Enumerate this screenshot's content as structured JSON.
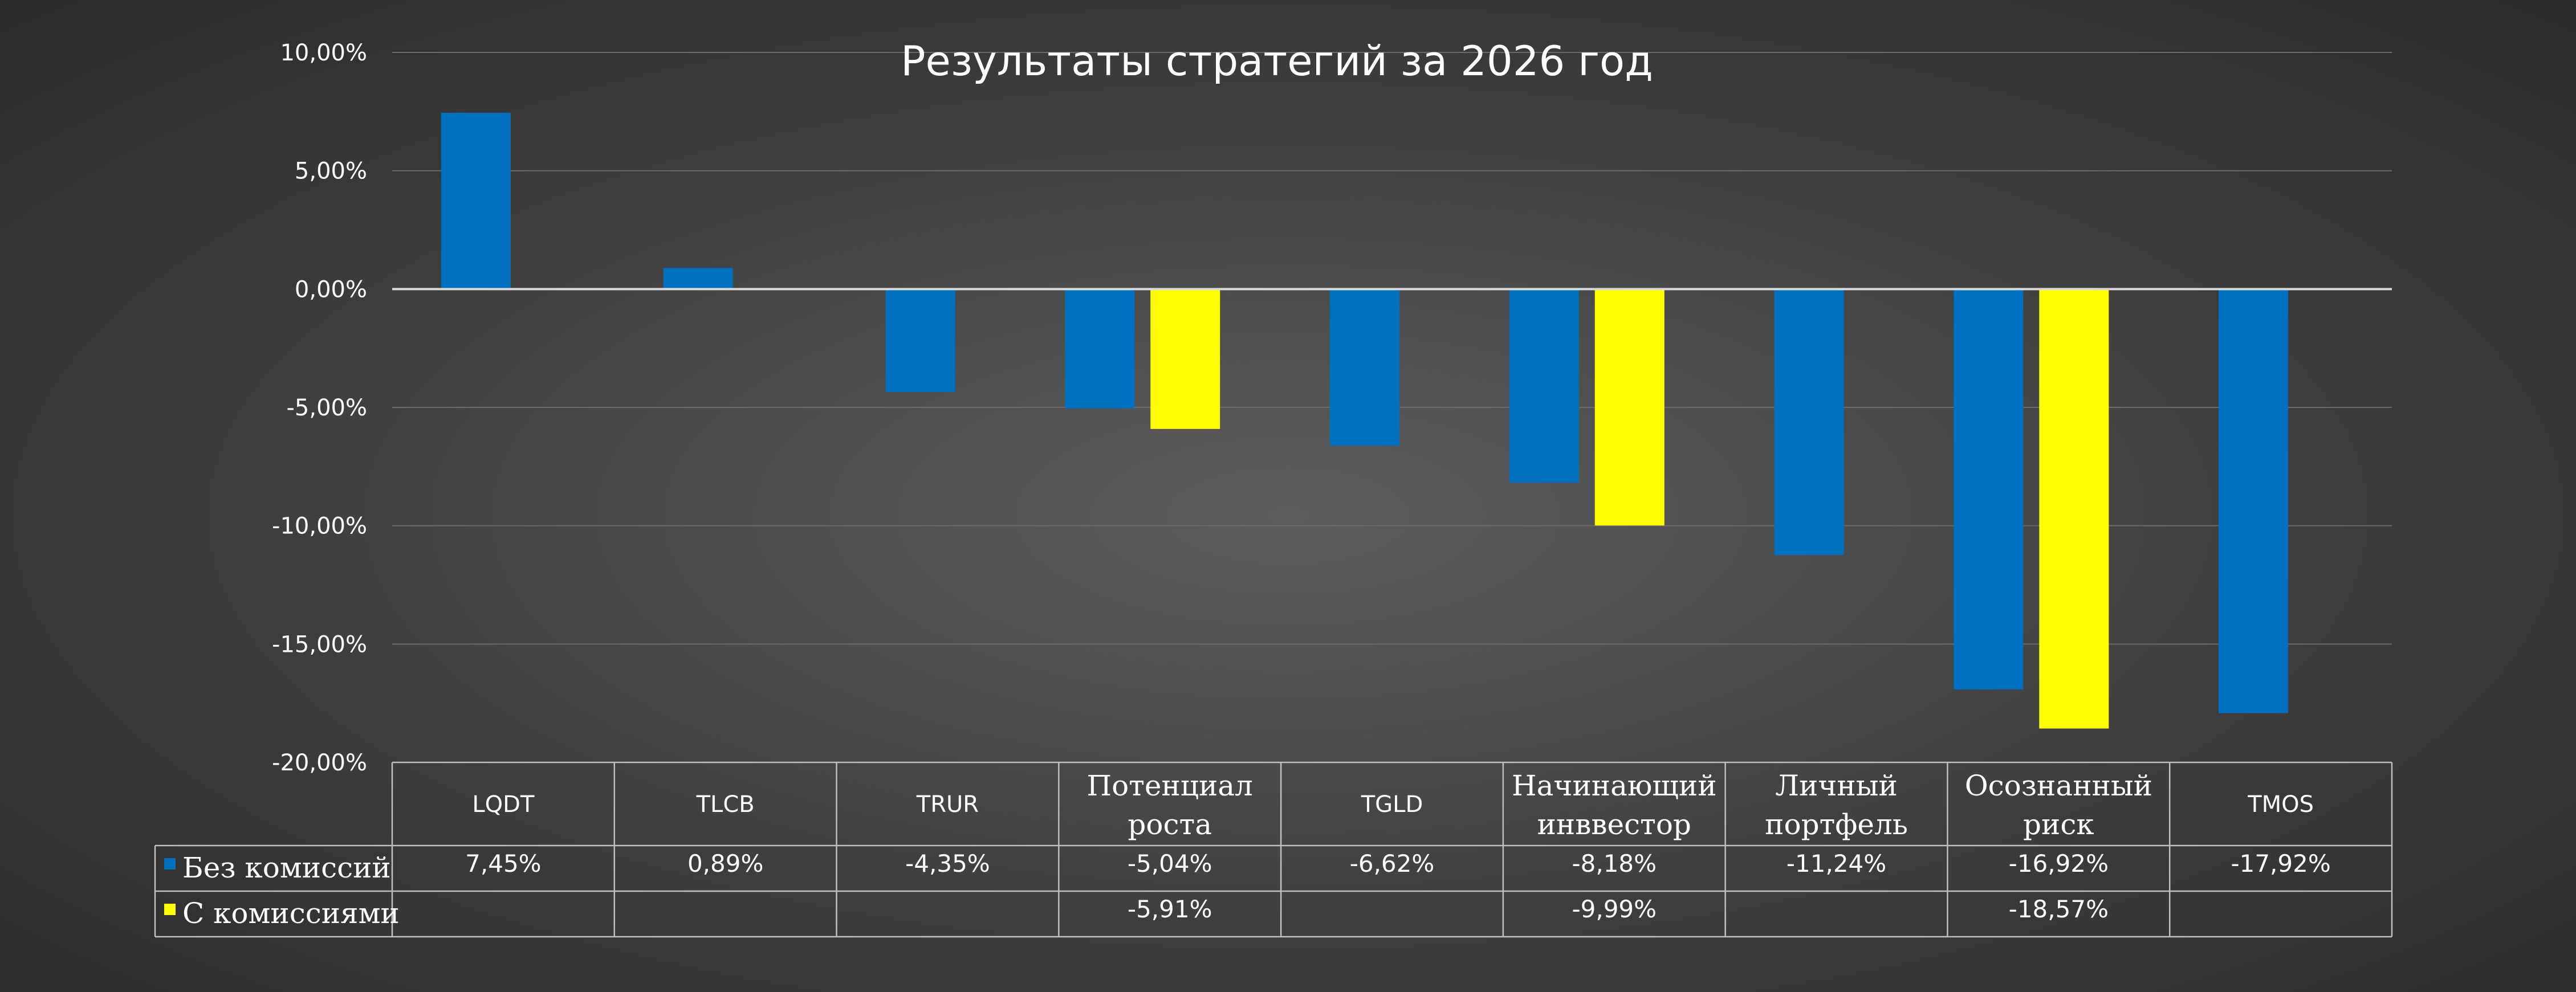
{
  "colors": {
    "series_a": "#0070c0",
    "series_b": "#ffff00",
    "grid": "#6a6a6a",
    "zero_line": "#d9d9d9",
    "table_lines": "#bfbfbf",
    "text": "#ffffff"
  },
  "chart_data": {
    "type": "bar",
    "title": "Результаты стратегий за 2026 год",
    "xlabel": "",
    "ylabel": "",
    "ylim": [
      -20,
      10
    ],
    "yticks": [
      "10,00%",
      "5,00%",
      "0,00%",
      "-5,00%",
      "-10,00%",
      "-15,00%",
      "-20,00%"
    ],
    "grid": true,
    "legend": "data-table",
    "categories": [
      [
        "LQDT"
      ],
      [
        "TLCB"
      ],
      [
        "TRUR"
      ],
      [
        "Потенциал",
        "роста"
      ],
      [
        "TGLD"
      ],
      [
        "Начинающий",
        "инввестор"
      ],
      [
        "Личный",
        "портфель"
      ],
      [
        "Осознанный",
        "риск"
      ],
      [
        "TMOS"
      ]
    ],
    "series": [
      {
        "name": "Без комиссий",
        "values": [
          7.45,
          0.89,
          -4.35,
          -5.04,
          -6.62,
          -8.18,
          -11.24,
          -16.92,
          -17.92
        ],
        "labels": [
          "7,45%",
          "0,89%",
          "-4,35%",
          "-5,04%",
          "-6,62%",
          "-8,18%",
          "-11,24%",
          "-16,92%",
          "-17,92%"
        ]
      },
      {
        "name": "С комиссиями",
        "values": [
          null,
          null,
          null,
          -5.91,
          null,
          -9.99,
          null,
          -18.57,
          null
        ],
        "labels": [
          "",
          "",
          "",
          "-5,91%",
          "",
          "-9,99%",
          "",
          "-18,57%",
          ""
        ]
      }
    ]
  }
}
